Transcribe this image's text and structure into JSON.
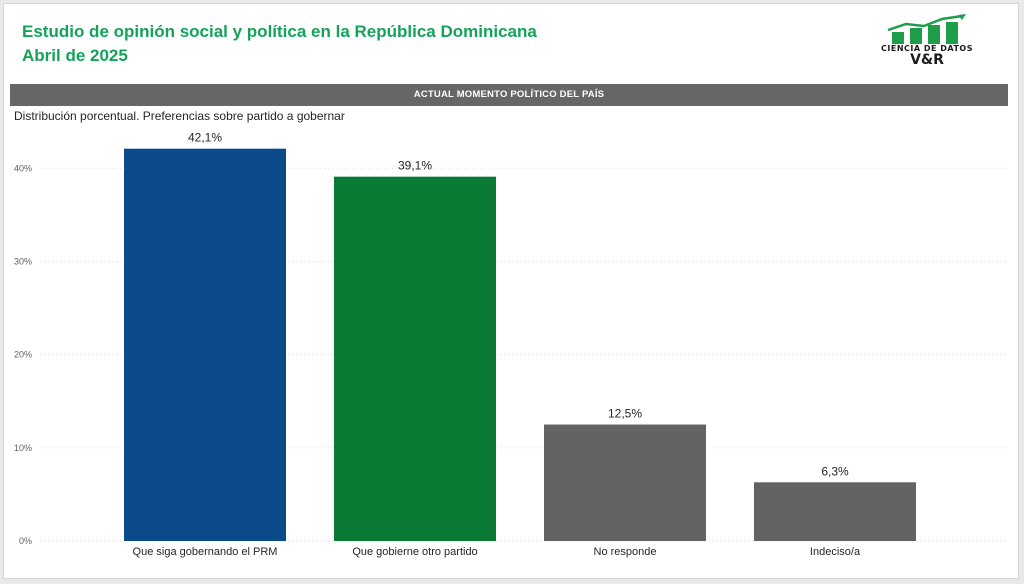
{
  "header": {
    "title_line1": "Estudio de opinión social y política en la República Dominicana",
    "title_line2": "Abril de 2025"
  },
  "logo": {
    "line1": "CIENCIA DE DATOS",
    "line2": "V&R"
  },
  "section": {
    "banner": "ACTUAL MOMENTO POLÍTICO DEL PAÍS",
    "subtitle": "Distribución porcentual. Preferencias sobre partido a gobernar"
  },
  "chart_data": {
    "type": "bar",
    "categories": [
      "Que siga gobernando el PRM",
      "Que gobierne otro partido",
      "No responde",
      "Indeciso/a"
    ],
    "values": [
      42.1,
      39.1,
      12.5,
      6.3
    ],
    "value_labels": [
      "42,1%",
      "39,1%",
      "12,5%",
      "6,3%"
    ],
    "colors": [
      "#0b4a8a",
      "#0a7a35",
      "#636363",
      "#636363"
    ],
    "yticks": [
      0,
      10,
      20,
      30,
      40
    ],
    "ytick_labels": [
      "0%",
      "10%",
      "20%",
      "30%",
      "40%"
    ],
    "ylim": [
      0,
      44
    ],
    "grid": true,
    "title": "",
    "xlabel": "",
    "ylabel": ""
  }
}
